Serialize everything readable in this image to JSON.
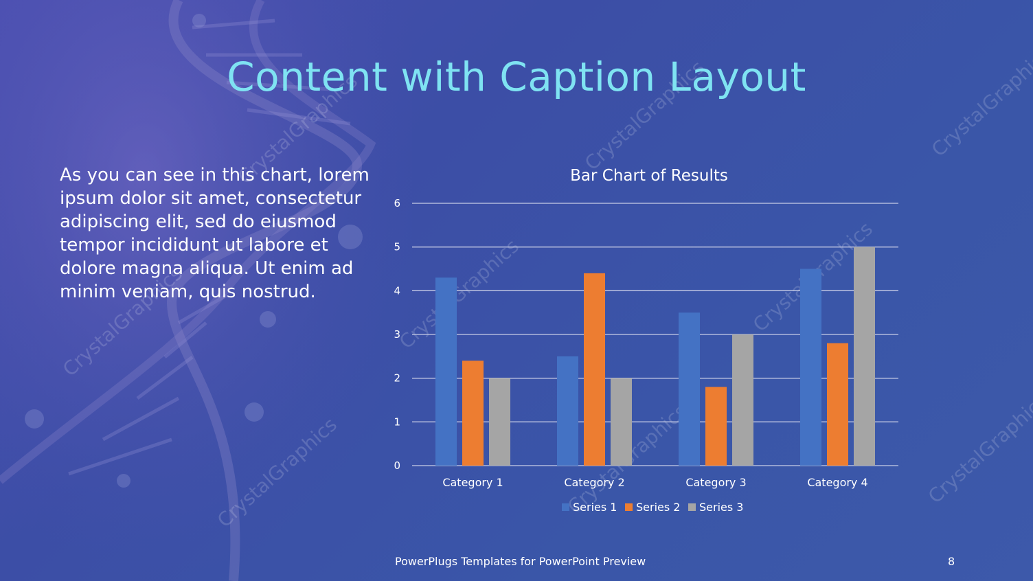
{
  "slide": {
    "title": "Content with Caption Layout",
    "caption": "As you can see in this chart, lorem ipsum dolor sit amet, consectetur adipiscing elit, sed do eiusmod tempor incididunt ut labore et dolore magna aliqua. Ut enim ad minim veniam, quis nostrud.",
    "footer": "PowerPlugs Templates for PowerPoint  Preview",
    "page_number": "8",
    "watermark": "CrystalGraphics"
  },
  "colors": {
    "title": "#7fe3f2",
    "series": [
      "#4472c4",
      "#ed7d31",
      "#a5a5a5"
    ],
    "gridline": "#c8cde6"
  },
  "chart_data": {
    "type": "bar",
    "title": "Bar Chart of Results",
    "categories": [
      "Category 1",
      "Category 2",
      "Category 3",
      "Category 4"
    ],
    "series": [
      {
        "name": "Series 1",
        "values": [
          4.3,
          2.5,
          3.5,
          4.5
        ]
      },
      {
        "name": "Series 2",
        "values": [
          2.4,
          4.4,
          1.8,
          2.8
        ]
      },
      {
        "name": "Series 3",
        "values": [
          2,
          2,
          3,
          5
        ]
      }
    ],
    "ylim": [
      0,
      6
    ],
    "yticks": [
      0,
      1,
      2,
      3,
      4,
      5,
      6
    ],
    "grid": true,
    "legend": "bottom"
  }
}
